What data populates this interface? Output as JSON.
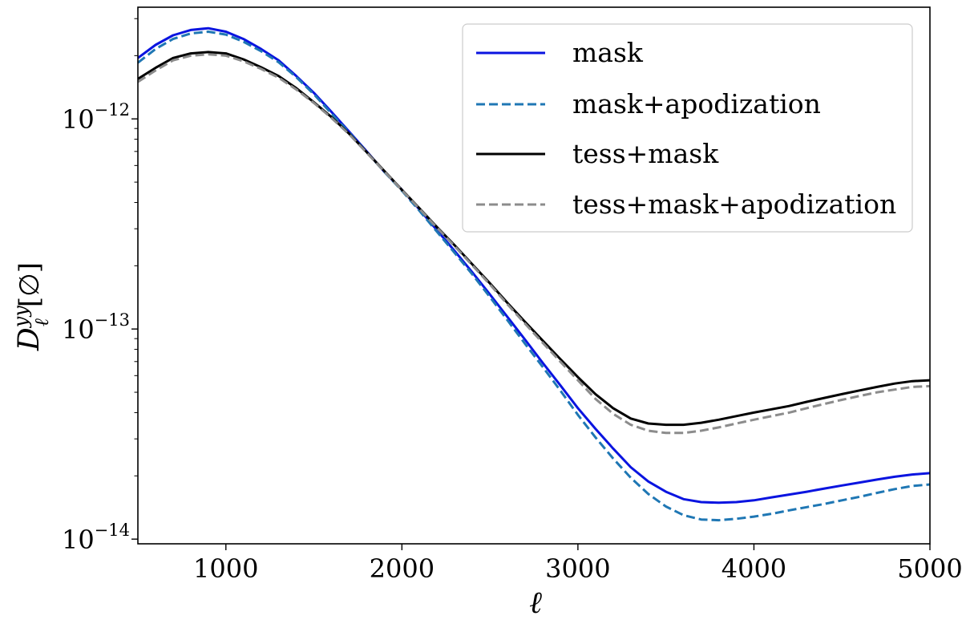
{
  "chart_data": {
    "type": "line",
    "xlabel": "ℓ",
    "ylabel": "D",
    "ylabel_superscript": "yy",
    "ylabel_subscript": "ℓ",
    "ylabel_unit": "[∅]",
    "xlim": [
      500,
      5000
    ],
    "ylim": [
      9.5e-15,
      3.4e-12
    ],
    "yscale": "log",
    "grid": false,
    "legend_position": "top-right",
    "x_ticks": [
      {
        "value": 1000,
        "label": "1000"
      },
      {
        "value": 2000,
        "label": "2000"
      },
      {
        "value": 3000,
        "label": "3000"
      },
      {
        "value": 4000,
        "label": "4000"
      },
      {
        "value": 5000,
        "label": "5000"
      }
    ],
    "y_ticks": [
      {
        "value": 1e-14,
        "base": "10",
        "exp": "−14"
      },
      {
        "value": 1e-13,
        "base": "10",
        "exp": "−13"
      },
      {
        "value": 1e-12,
        "base": "10",
        "exp": "−12"
      }
    ],
    "x": [
      500,
      600,
      700,
      800,
      900,
      1000,
      1100,
      1200,
      1300,
      1400,
      1500,
      1600,
      1700,
      1800,
      1900,
      2000,
      2100,
      2200,
      2300,
      2400,
      2500,
      2600,
      2700,
      2800,
      2900,
      3000,
      3100,
      3200,
      3300,
      3400,
      3500,
      3600,
      3700,
      3800,
      3900,
      4000,
      4100,
      4200,
      4300,
      4400,
      4500,
      4600,
      4700,
      4800,
      4900,
      5000
    ],
    "series": [
      {
        "name": "mask",
        "color": "#0a14e0",
        "dash": "solid",
        "values": [
          1.95e-12,
          2.25e-12,
          2.5e-12,
          2.65e-12,
          2.7e-12,
          2.6e-12,
          2.4e-12,
          2.15e-12,
          1.9e-12,
          1.6e-12,
          1.33e-12,
          1.08e-12,
          8.7e-13,
          7e-13,
          5.6e-13,
          4.6e-13,
          3.7e-13,
          2.95e-13,
          2.35e-13,
          1.86e-13,
          1.46e-13,
          1.14e-13,
          8.9e-14,
          6.9e-14,
          5.4e-14,
          4.2e-14,
          3.35e-14,
          2.7e-14,
          2.2e-14,
          1.88e-14,
          1.68e-14,
          1.55e-14,
          1.5e-14,
          1.49e-14,
          1.5e-14,
          1.53e-14,
          1.58e-14,
          1.63e-14,
          1.68e-14,
          1.74e-14,
          1.8e-14,
          1.86e-14,
          1.92e-14,
          1.98e-14,
          2.03e-14,
          2.06e-14
        ]
      },
      {
        "name": "mask+apodization",
        "color": "#1f77b4",
        "dash": "dashed",
        "values": [
          1.85e-12,
          2.15e-12,
          2.4e-12,
          2.55e-12,
          2.6e-12,
          2.52e-12,
          2.33e-12,
          2.1e-12,
          1.86e-12,
          1.58e-12,
          1.31e-12,
          1.06e-12,
          8.6e-13,
          6.95e-13,
          5.6e-13,
          4.55e-13,
          3.65e-13,
          2.9e-13,
          2.3e-13,
          1.82e-13,
          1.42e-13,
          1.1e-13,
          8.5e-14,
          6.6e-14,
          5.1e-14,
          3.9e-14,
          3.05e-14,
          2.42e-14,
          1.96e-14,
          1.64e-14,
          1.43e-14,
          1.3e-14,
          1.24e-14,
          1.23e-14,
          1.25e-14,
          1.28e-14,
          1.32e-14,
          1.37e-14,
          1.42e-14,
          1.47e-14,
          1.53e-14,
          1.59e-14,
          1.66e-14,
          1.73e-14,
          1.79e-14,
          1.82e-14
        ]
      },
      {
        "name": "tess+mask",
        "color": "#000000",
        "dash": "solid",
        "values": [
          1.55e-12,
          1.75e-12,
          1.95e-12,
          2.05e-12,
          2.08e-12,
          2.05e-12,
          1.92e-12,
          1.76e-12,
          1.6e-12,
          1.4e-12,
          1.2e-12,
          1.02e-12,
          8.5e-13,
          6.95e-13,
          5.65e-13,
          4.6e-13,
          3.75e-13,
          3.05e-13,
          2.5e-13,
          2.03e-13,
          1.65e-13,
          1.33e-13,
          1.08e-13,
          8.8e-14,
          7.2e-14,
          5.9e-14,
          4.9e-14,
          4.2e-14,
          3.75e-14,
          3.55e-14,
          3.5e-14,
          3.5e-14,
          3.58e-14,
          3.7e-14,
          3.85e-14,
          4e-14,
          4.15e-14,
          4.3e-14,
          4.5e-14,
          4.7e-14,
          4.9e-14,
          5.1e-14,
          5.3e-14,
          5.5e-14,
          5.65e-14,
          5.7e-14
        ]
      },
      {
        "name": "tess+mask+apodization",
        "color": "#8c8c8c",
        "dash": "dashed",
        "values": [
          1.5e-12,
          1.7e-12,
          1.9e-12,
          2e-12,
          2.03e-12,
          2e-12,
          1.88e-12,
          1.73e-12,
          1.57e-12,
          1.38e-12,
          1.19e-12,
          1.01e-12,
          8.45e-13,
          6.9e-13,
          5.62e-13,
          4.58e-13,
          3.73e-13,
          3.03e-13,
          2.48e-13,
          2.01e-13,
          1.63e-13,
          1.31e-13,
          1.06e-13,
          8.6e-14,
          7e-14,
          5.7e-14,
          4.65e-14,
          3.95e-14,
          3.5e-14,
          3.28e-14,
          3.2e-14,
          3.2e-14,
          3.28e-14,
          3.4e-14,
          3.55e-14,
          3.7e-14,
          3.85e-14,
          4e-14,
          4.2e-14,
          4.4e-14,
          4.6e-14,
          4.8e-14,
          5e-14,
          5.15e-14,
          5.3e-14,
          5.35e-14
        ]
      }
    ]
  }
}
